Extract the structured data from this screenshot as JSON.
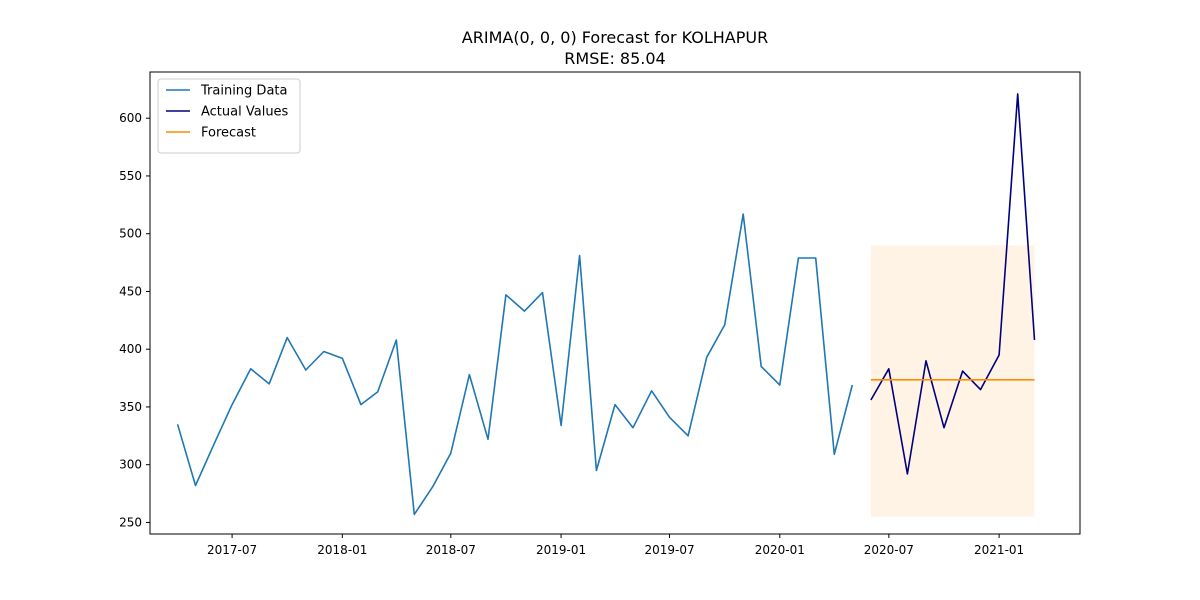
{
  "chart_data": {
    "type": "line",
    "title": "ARIMA(0, 0, 0) Forecast for KOLHAPUR",
    "subtitle": "RMSE: 85.04",
    "xlabel": "",
    "ylabel": "",
    "xlim": [
      "2017-02-14",
      "2021-05-16"
    ],
    "ylim": [
      240,
      640
    ],
    "x_ticks": [
      "2017-07-01",
      "2018-01-01",
      "2018-07-01",
      "2019-01-01",
      "2019-07-01",
      "2020-01-01",
      "2020-07-01",
      "2021-01-01"
    ],
    "x_tick_labels": [
      "2017-07",
      "2018-01",
      "2018-07",
      "2019-01",
      "2019-07",
      "2020-01",
      "2020-07",
      "2021-01"
    ],
    "y_ticks": [
      250,
      300,
      350,
      400,
      450,
      500,
      550,
      600
    ],
    "y_tick_labels": [
      "250",
      "300",
      "350",
      "400",
      "450",
      "500",
      "550",
      "600"
    ],
    "grid": false,
    "legend_position": "top-left",
    "series": [
      {
        "name": "Training Data",
        "color": "#1f77b4",
        "x": [
          "2017-04-01",
          "2017-05-01",
          "2017-06-01",
          "2017-07-01",
          "2017-08-01",
          "2017-09-01",
          "2017-10-01",
          "2017-11-01",
          "2017-12-01",
          "2018-01-01",
          "2018-02-01",
          "2018-03-01",
          "2018-04-01",
          "2018-05-01",
          "2018-06-01",
          "2018-07-01",
          "2018-08-01",
          "2018-09-01",
          "2018-10-01",
          "2018-11-01",
          "2018-12-01",
          "2019-01-01",
          "2019-02-01",
          "2019-03-01",
          "2019-04-01",
          "2019-05-01",
          "2019-06-01",
          "2019-07-01",
          "2019-08-01",
          "2019-09-01",
          "2019-10-01",
          "2019-11-01",
          "2019-12-01",
          "2020-01-01",
          "2020-02-01",
          "2020-03-01",
          "2020-04-01",
          "2020-05-01"
        ],
        "values": [
          335,
          282,
          318,
          352,
          383,
          370,
          410,
          382,
          398,
          392,
          352,
          363,
          408,
          257,
          281,
          310,
          378,
          322,
          447,
          433,
          449,
          334,
          481,
          295,
          352,
          332,
          364,
          341,
          325,
          393,
          421,
          517,
          385,
          369,
          479,
          479,
          309,
          369
        ]
      },
      {
        "name": "Actual Values",
        "color": "#000080",
        "x": [
          "2020-06-01",
          "2020-07-01",
          "2020-08-01",
          "2020-09-01",
          "2020-10-01",
          "2020-11-01",
          "2020-12-01",
          "2021-01-01",
          "2021-02-01",
          "2021-03-01"
        ],
        "values": [
          356,
          383,
          292,
          390,
          332,
          381,
          365,
          395,
          621,
          408
        ]
      },
      {
        "name": "Forecast",
        "color": "#ff8c00",
        "x": [
          "2020-06-01",
          "2021-03-01"
        ],
        "values": [
          373.5,
          373.5
        ]
      }
    ],
    "confidence_band": {
      "color": "#ff8c00",
      "opacity": 0.1,
      "x": [
        "2020-06-01",
        "2021-03-01"
      ],
      "lower": 255,
      "upper": 490
    }
  }
}
